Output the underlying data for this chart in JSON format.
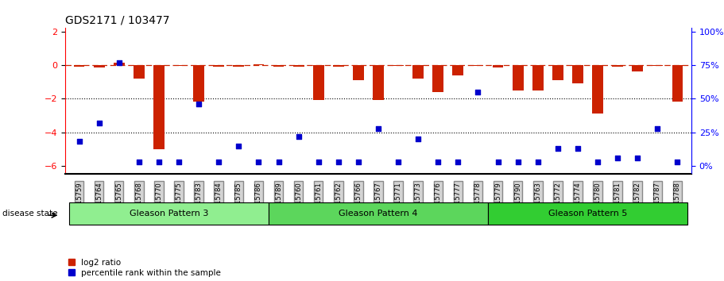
{
  "title": "GDS2171 / 103477",
  "samples": [
    "GSM115759",
    "GSM115764",
    "GSM115765",
    "GSM115768",
    "GSM115770",
    "GSM115775",
    "GSM115783",
    "GSM115784",
    "GSM115785",
    "GSM115786",
    "GSM115789",
    "GSM115760",
    "GSM115761",
    "GSM115762",
    "GSM115766",
    "GSM115767",
    "GSM115771",
    "GSM115773",
    "GSM115776",
    "GSM115777",
    "GSM115778",
    "GSM115779",
    "GSM115790",
    "GSM115763",
    "GSM115772",
    "GSM115774",
    "GSM115780",
    "GSM115781",
    "GSM115782",
    "GSM115787",
    "GSM115788"
  ],
  "log2_ratio": [
    -0.1,
    -0.15,
    0.12,
    -0.8,
    -5.0,
    -0.05,
    -2.2,
    -0.1,
    -0.12,
    0.05,
    -0.08,
    -0.08,
    -2.1,
    -0.1,
    -0.9,
    -2.1,
    -0.05,
    -0.8,
    -1.6,
    -0.6,
    -0.05,
    -0.15,
    -1.5,
    -1.5,
    -0.9,
    -1.1,
    -2.9,
    -0.1,
    -0.4,
    -0.05,
    -2.2
  ],
  "percentile": [
    18,
    32,
    77,
    3,
    3,
    3,
    46,
    3,
    15,
    3,
    3,
    22,
    3,
    3,
    3,
    28,
    3,
    20,
    3,
    3,
    55,
    3,
    3,
    3,
    13,
    13,
    3,
    6,
    6,
    28,
    3
  ],
  "groups": [
    {
      "label": "Gleason Pattern 3",
      "start": 0,
      "end": 10,
      "color": "#90EE90"
    },
    {
      "label": "Gleason Pattern 4",
      "start": 10,
      "end": 21,
      "color": "#5CD65C"
    },
    {
      "label": "Gleason Pattern 5",
      "start": 21,
      "end": 31,
      "color": "#32CD32"
    }
  ],
  "bar_color": "#CC2200",
  "scatter_color": "#0000CC",
  "ylim_left": [
    -6.5,
    2.2
  ],
  "ylim_right": [
    -8.125,
    27.5
  ],
  "yticks_left": [
    -6,
    -4,
    -2,
    0,
    2
  ],
  "yticks_right": [
    0,
    25,
    50,
    75,
    100
  ],
  "dotted_lines": [
    -2,
    -4
  ],
  "disease_state_label": "disease state"
}
